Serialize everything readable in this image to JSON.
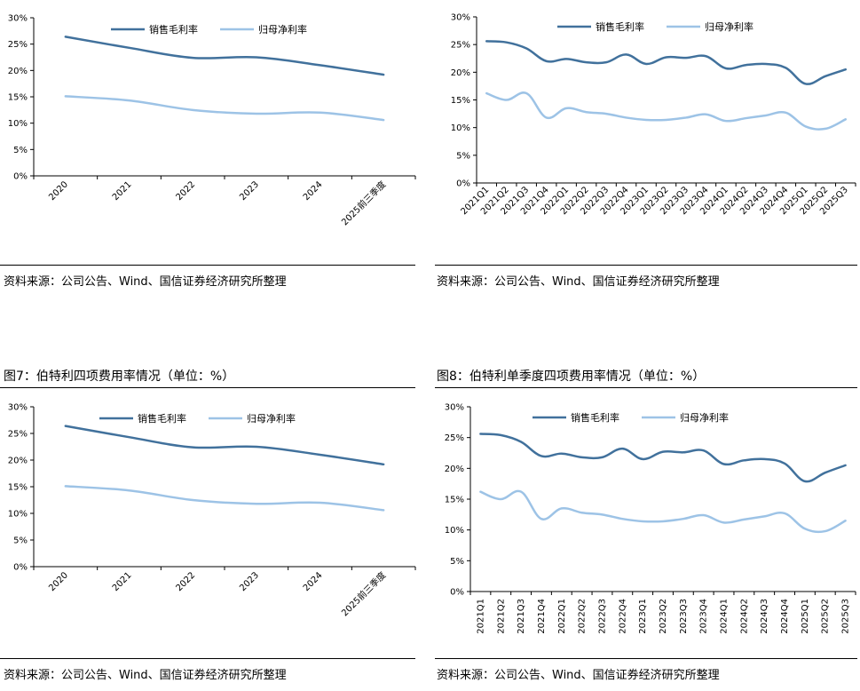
{
  "colors": {
    "series1": "#41719c",
    "series2": "#9dc3e6",
    "axis": "#000000"
  },
  "panels": [
    {
      "id": "tl",
      "source": "资料来源：公司公告、Wind、国信证券经济研究所整理",
      "chart_data": {
        "type": "line",
        "categories": [
          "2020",
          "2021",
          "2022",
          "2023",
          "2024",
          "2025前三季度"
        ],
        "series": [
          {
            "name": "销售毛利率",
            "values": [
              26.4,
              24.3,
              22.4,
              22.5,
              21.0,
              19.2
            ]
          },
          {
            "name": "归母净利率",
            "values": [
              15.1,
              14.3,
              12.5,
              11.8,
              12.0,
              10.6
            ]
          }
        ],
        "yticks": [
          "0%",
          "5%",
          "10%",
          "15%",
          "20%",
          "25%",
          "30%"
        ],
        "ylim": [
          0,
          30
        ],
        "legend": "top",
        "grid": false
      }
    },
    {
      "id": "tr",
      "source": "资料来源：公司公告、Wind、国信证券经济研究所整理",
      "chart_data": {
        "type": "line",
        "categories": [
          "2021Q1",
          "2021Q2",
          "2021Q3",
          "2021Q4",
          "2022Q1",
          "2022Q2",
          "2022Q3",
          "2022Q4",
          "2023Q1",
          "2023Q2",
          "2023Q3",
          "2023Q4",
          "2024Q1",
          "2024Q2",
          "2024Q3",
          "2024Q4",
          "2025Q1",
          "2025Q2",
          "2025Q3"
        ],
        "series": [
          {
            "name": "销售毛利率",
            "values": [
              25.6,
              25.4,
              24.3,
              22.0,
              22.4,
              21.8,
              21.8,
              23.2,
              21.5,
              22.7,
              22.6,
              22.9,
              20.7,
              21.3,
              21.5,
              20.8,
              17.9,
              19.3,
              20.5
            ]
          },
          {
            "name": "归母净利率",
            "values": [
              16.2,
              15.0,
              16.2,
              11.8,
              13.5,
              12.8,
              12.5,
              11.8,
              11.4,
              11.4,
              11.8,
              12.4,
              11.2,
              11.7,
              12.2,
              12.7,
              10.2,
              9.8,
              11.5
            ]
          }
        ],
        "yticks": [
          "0%",
          "5%",
          "10%",
          "15%",
          "20%",
          "25%",
          "30%"
        ],
        "ylim": [
          0,
          30
        ],
        "legend": "top",
        "grid": false
      }
    },
    {
      "id": "bl",
      "title": "图7：伯特利四项费用率情况（单位：%）",
      "source": "资料来源：公司公告、Wind、国信证券经济研究所整理",
      "chart_data": {
        "type": "line",
        "categories": [
          "2020",
          "2021",
          "2022",
          "2023",
          "2024",
          "2025前三季度"
        ],
        "series": [
          {
            "name": "销售毛利率",
            "values": [
              26.4,
              24.3,
              22.4,
              22.5,
              21.0,
              19.2
            ]
          },
          {
            "name": "归母净利率",
            "values": [
              15.1,
              14.3,
              12.5,
              11.8,
              12.0,
              10.6
            ]
          }
        ],
        "yticks": [
          "0%",
          "5%",
          "10%",
          "15%",
          "20%",
          "25%",
          "30%"
        ],
        "ylim": [
          0,
          30
        ],
        "legend": "top",
        "grid": false
      }
    },
    {
      "id": "br",
      "title": "图8：伯特利单季度四项费用率情况（单位：%）",
      "source": "资料来源：公司公告、Wind、国信证券经济研究所整理",
      "chart_data": {
        "type": "line",
        "categories": [
          "2021Q1",
          "2021Q2",
          "2021Q3",
          "2021Q4",
          "2022Q1",
          "2022Q2",
          "2022Q3",
          "2022Q4",
          "2023Q1",
          "2023Q2",
          "2023Q3",
          "2023Q4",
          "2024Q1",
          "2024Q2",
          "2024Q3",
          "2024Q4",
          "2025Q1",
          "2025Q2",
          "2025Q3"
        ],
        "series": [
          {
            "name": "销售毛利率",
            "values": [
              25.6,
              25.4,
              24.3,
              22.0,
              22.4,
              21.8,
              21.8,
              23.2,
              21.5,
              22.7,
              22.6,
              22.9,
              20.7,
              21.3,
              21.5,
              20.8,
              17.9,
              19.3,
              20.5
            ]
          },
          {
            "name": "归母净利率",
            "values": [
              16.2,
              15.0,
              16.2,
              11.8,
              13.5,
              12.8,
              12.5,
              11.8,
              11.4,
              11.4,
              11.8,
              12.4,
              11.2,
              11.7,
              12.2,
              12.7,
              10.2,
              9.8,
              11.5
            ]
          }
        ],
        "yticks": [
          "0%",
          "5%",
          "10%",
          "15%",
          "20%",
          "25%",
          "30%"
        ],
        "ylim": [
          0,
          30
        ],
        "legend": "top",
        "grid": false
      }
    }
  ]
}
